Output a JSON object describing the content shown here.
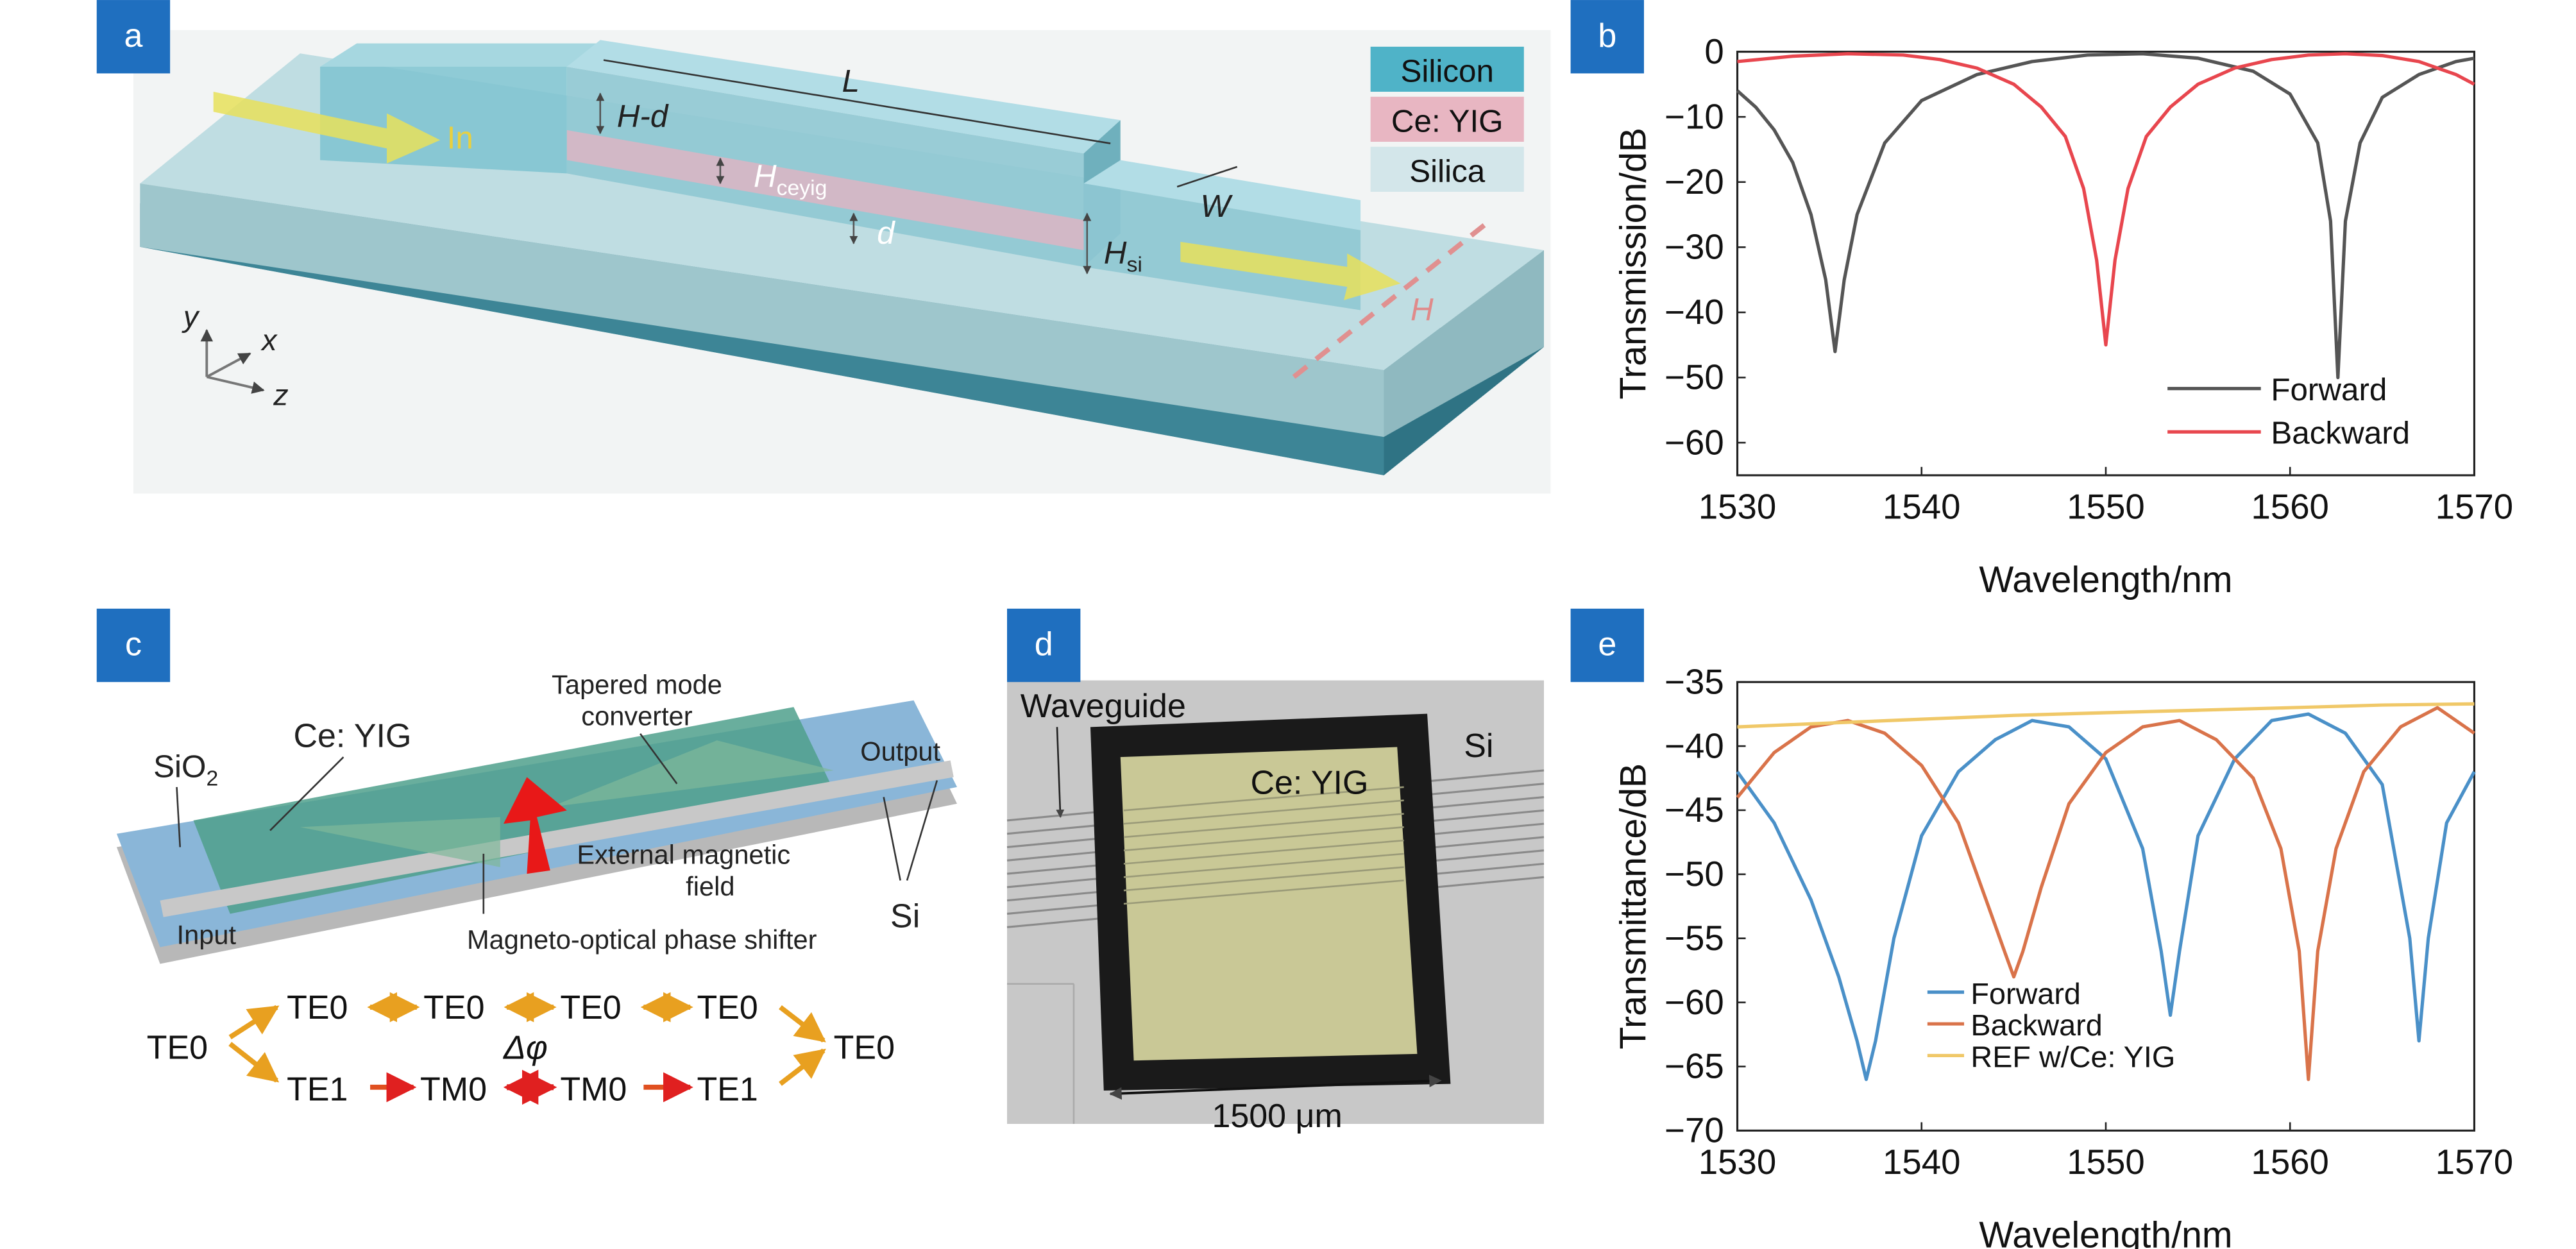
{
  "panels": {
    "a": {
      "tag": "a",
      "legend": [
        {
          "label": "Silicon",
          "color": "#4fb3c8"
        },
        {
          "label": "Ce: YIG",
          "color": "#e8b6c2"
        },
        {
          "label": "Silica",
          "color": "#d3e6ea"
        }
      ],
      "labels": {
        "in": "In",
        "L": "L",
        "hd": "H-d",
        "hceyig": "H",
        "hceyig_sub": "ceyig",
        "d": "d",
        "w": "W",
        "hsi": "H",
        "hsi_sub": "si",
        "h_field": "H",
        "y": "y",
        "x": "x",
        "z": "z"
      }
    },
    "b": {
      "tag": "b"
    },
    "c": {
      "tag": "c",
      "labels": {
        "sio2": "SiO",
        "sio2_sub": "2",
        "ceyig": "Ce: YIG",
        "tapered1": "Tapered mode",
        "tapered2": "converter",
        "output": "Output",
        "external1": "External magnetic",
        "external2": "field",
        "input": "Input",
        "si": "Si",
        "phase_shifter": "Magneto-optical phase shifter"
      },
      "modes": {
        "te0_left": "TE0",
        "te0_right": "TE0",
        "top": [
          "TE0",
          "TE0",
          "TE0",
          "TE0"
        ],
        "bottom": [
          "TE1",
          "TM0",
          "TM0",
          "TE1"
        ],
        "delta_phi": "Δφ"
      }
    },
    "d": {
      "tag": "d",
      "labels": {
        "waveguide": "Waveguide",
        "ceyig": "Ce: YIG",
        "si": "Si",
        "scale": "1500 μm"
      }
    },
    "e": {
      "tag": "e"
    }
  },
  "chart_data": [
    {
      "panel": "b",
      "type": "line",
      "xlabel": "Wavelength/nm",
      "ylabel": "Transmission/dB",
      "xlim": [
        1530,
        1570
      ],
      "ylim": [
        -65,
        0
      ],
      "xticks": [
        1530,
        1540,
        1550,
        1560,
        1570
      ],
      "yticks": [
        0,
        -10,
        -20,
        -30,
        -40,
        -50,
        -60
      ],
      "tick_labels_x": [
        "1530",
        "1540",
        "1550",
        "1560",
        "1570"
      ],
      "tick_labels_y": [
        "0",
        "−10",
        "−20",
        "−30",
        "−40",
        "−50",
        "−60"
      ],
      "legend_position": "bottom-right",
      "series": [
        {
          "name": "Forward",
          "color": "#555555",
          "x": [
            1530,
            1531,
            1532,
            1533,
            1534,
            1534.8,
            1535.3,
            1535.8,
            1536.5,
            1538,
            1540,
            1543,
            1546,
            1549,
            1552,
            1555,
            1558,
            1560,
            1561.5,
            1562.2,
            1562.6,
            1563,
            1563.8,
            1565,
            1567,
            1569,
            1570
          ],
          "y": [
            -6,
            -8.5,
            -12,
            -17,
            -25,
            -35,
            -46,
            -35,
            -25,
            -14,
            -7.5,
            -3.5,
            -1.5,
            -0.5,
            -0.3,
            -1,
            -3,
            -6.5,
            -14,
            -26,
            -50,
            -26,
            -14,
            -7,
            -3.5,
            -1.5,
            -1
          ]
        },
        {
          "name": "Backward",
          "color": "#e8464e",
          "x": [
            1530,
            1533,
            1536,
            1539,
            1541,
            1543,
            1545,
            1546.5,
            1547.8,
            1548.8,
            1549.5,
            1550,
            1550.5,
            1551.2,
            1552.2,
            1553.5,
            1555,
            1557,
            1559,
            1561,
            1563,
            1565,
            1567,
            1569,
            1570
          ],
          "y": [
            -1.5,
            -0.7,
            -0.3,
            -0.5,
            -1.2,
            -2.5,
            -5,
            -8.5,
            -13,
            -21,
            -32,
            -45,
            -32,
            -21,
            -13,
            -8.5,
            -5,
            -2.5,
            -1.2,
            -0.5,
            -0.3,
            -0.6,
            -1.5,
            -3.5,
            -5
          ]
        }
      ]
    },
    {
      "panel": "e",
      "type": "line",
      "xlabel": "Wavelength/nm",
      "ylabel": "Transmittance/dB",
      "xlim": [
        1530,
        1570
      ],
      "ylim": [
        -70,
        -35
      ],
      "xticks": [
        1530,
        1540,
        1550,
        1560,
        1570
      ],
      "yticks": [
        -35,
        -40,
        -45,
        -50,
        -55,
        -60,
        -65,
        -70
      ],
      "tick_labels_x": [
        "1530",
        "1540",
        "1550",
        "1560",
        "1570"
      ],
      "tick_labels_y": [
        "−35",
        "−40",
        "−45",
        "−50",
        "−55",
        "−60",
        "−65",
        "−70"
      ],
      "legend_position": "bottom-left",
      "series": [
        {
          "name": "Forward",
          "color": "#4a90c8",
          "x": [
            1530,
            1532,
            1534,
            1535.5,
            1536.5,
            1537,
            1537.5,
            1538.5,
            1540,
            1542,
            1544,
            1546,
            1548,
            1550,
            1552,
            1553,
            1553.5,
            1554,
            1555,
            1557,
            1559,
            1561,
            1563,
            1565,
            1566.5,
            1567,
            1567.5,
            1568.5,
            1570
          ],
          "y": [
            -42,
            -46,
            -52,
            -58,
            -63,
            -66,
            -63,
            -55,
            -47,
            -42,
            -39.5,
            -38,
            -38.5,
            -41,
            -48,
            -56,
            -61,
            -56,
            -47,
            -41,
            -38,
            -37.5,
            -39,
            -43,
            -55,
            -63,
            -55,
            -46,
            -42
          ]
        },
        {
          "name": "Backward",
          "color": "#d9734a",
          "x": [
            1530,
            1532,
            1534,
            1536,
            1538,
            1540,
            1542,
            1543.5,
            1544.5,
            1545,
            1545.5,
            1546.5,
            1548,
            1550,
            1552,
            1554,
            1556,
            1558,
            1559.5,
            1560.5,
            1561,
            1561.5,
            1562.5,
            1564,
            1566,
            1568,
            1570
          ],
          "y": [
            -44,
            -40.5,
            -38.5,
            -38,
            -39,
            -41.5,
            -46,
            -52,
            -56,
            -58,
            -56,
            -51,
            -44.5,
            -40.5,
            -38.5,
            -38,
            -39.5,
            -42.5,
            -48,
            -56,
            -66,
            -56,
            -48,
            -42,
            -38.5,
            -37,
            -39
          ]
        },
        {
          "name": "REF w/Ce: YIG",
          "color": "#f0c868",
          "x": [
            1530,
            1535,
            1540,
            1545,
            1550,
            1555,
            1560,
            1565,
            1570
          ],
          "y": [
            -38.5,
            -38.2,
            -37.9,
            -37.6,
            -37.4,
            -37.2,
            -37,
            -36.8,
            -36.7
          ]
        }
      ]
    }
  ]
}
